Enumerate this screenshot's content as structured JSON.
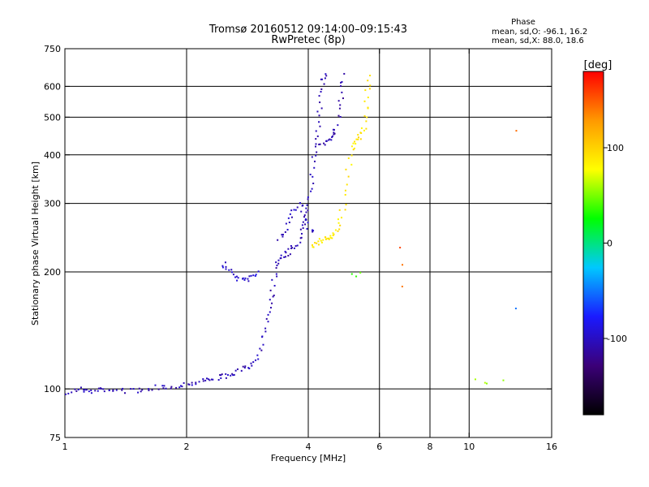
{
  "chart_data": {
    "type": "scatter",
    "title": "Tromsø 20160512 09:14:00–09:15:43",
    "subtitle": "RwPretec (8p)",
    "xlabel": "Frequency [MHz]",
    "ylabel": "Stationary phase Virtual Height [km]",
    "x_scale": "log",
    "y_scale": "log",
    "xlim": [
      1,
      16
    ],
    "ylim": [
      75,
      750
    ],
    "x_ticks": [
      1,
      2,
      4,
      6,
      8,
      10,
      16
    ],
    "y_ticks": [
      75,
      100,
      200,
      300,
      400,
      500,
      600,
      750
    ],
    "x_grid": [
      2,
      4,
      6,
      8,
      10
    ],
    "y_grid": [
      100,
      200,
      300,
      400,
      500,
      600
    ],
    "grid": true,
    "colorbar": {
      "unit_label": "[deg]",
      "ticks": [
        100,
        0,
        -100
      ],
      "range": [
        -180,
        180
      ],
      "colors": [
        "#000000",
        "#3b0078",
        "#1a1aff",
        "#00c8ff",
        "#00ff00",
        "#ffff00",
        "#ff9900",
        "#ff0000"
      ]
    },
    "stats": {
      "header": "Phase",
      "o_line": "mean, sd,O: -96.1, 16.2",
      "x_line": "mean, sd,X: 88.0, 18.6"
    },
    "traces": [
      {
        "phase": -105,
        "points": [
          [
            1.0,
            97
          ],
          [
            1.05,
            99
          ],
          [
            1.1,
            100
          ],
          [
            1.15,
            98
          ],
          [
            1.2,
            99
          ],
          [
            1.25,
            100
          ],
          [
            1.3,
            99
          ],
          [
            1.4,
            99
          ],
          [
            1.5,
            99
          ],
          [
            1.6,
            100
          ],
          [
            1.7,
            101
          ],
          [
            1.8,
            101
          ],
          [
            1.9,
            102
          ],
          [
            2.0,
            103
          ],
          [
            2.1,
            104
          ],
          [
            2.2,
            105
          ],
          [
            2.3,
            106
          ],
          [
            2.4,
            107
          ],
          [
            2.5,
            108
          ],
          [
            2.6,
            109
          ],
          [
            2.7,
            111
          ],
          [
            2.8,
            113
          ],
          [
            2.9,
            116
          ],
          [
            3.0,
            122
          ],
          [
            3.1,
            135
          ],
          [
            3.15,
            148
          ],
          [
            3.2,
            160
          ],
          [
            3.25,
            175
          ],
          [
            3.3,
            195
          ],
          [
            3.35,
            210
          ],
          [
            3.4,
            218
          ],
          [
            3.5,
            222
          ],
          [
            3.6,
            226
          ],
          [
            3.7,
            232
          ],
          [
            3.8,
            242
          ],
          [
            3.9,
            258
          ],
          [
            3.95,
            275
          ],
          [
            4.0,
            300
          ],
          [
            4.05,
            330
          ],
          [
            4.1,
            370
          ],
          [
            4.15,
            410
          ],
          [
            4.2,
            450
          ],
          [
            4.25,
            500
          ],
          [
            4.3,
            560
          ],
          [
            4.35,
            620
          ],
          [
            4.4,
            650
          ]
        ]
      },
      {
        "phase": -95,
        "points": [
          [
            2.45,
            210
          ],
          [
            2.5,
            205
          ],
          [
            2.6,
            198
          ],
          [
            2.7,
            192
          ],
          [
            2.8,
            190
          ],
          [
            2.9,
            195
          ],
          [
            3.0,
            200
          ]
        ]
      },
      {
        "phase": -100,
        "points": [
          [
            3.4,
            240
          ],
          [
            3.5,
            255
          ],
          [
            3.6,
            275
          ],
          [
            3.7,
            290
          ],
          [
            3.8,
            300
          ],
          [
            3.9,
            285
          ],
          [
            4.0,
            265
          ],
          [
            4.1,
            250
          ]
        ]
      },
      {
        "phase": -110,
        "points": [
          [
            4.3,
            420
          ],
          [
            4.4,
            430
          ],
          [
            4.5,
            440
          ],
          [
            4.6,
            450
          ],
          [
            4.7,
            470
          ],
          [
            4.8,
            520
          ],
          [
            4.85,
            580
          ],
          [
            4.9,
            640
          ]
        ]
      },
      {
        "phase": 90,
        "points": [
          [
            4.1,
            230
          ],
          [
            4.2,
            235
          ],
          [
            4.3,
            240
          ],
          [
            4.4,
            245
          ],
          [
            4.5,
            245
          ],
          [
            4.6,
            248
          ],
          [
            4.7,
            255
          ],
          [
            4.8,
            270
          ],
          [
            4.9,
            300
          ],
          [
            5.0,
            350
          ],
          [
            5.1,
            400
          ],
          [
            5.2,
            430
          ],
          [
            5.3,
            440
          ],
          [
            5.4,
            450
          ],
          [
            5.5,
            470
          ],
          [
            5.55,
            520
          ],
          [
            5.6,
            580
          ],
          [
            5.65,
            640
          ]
        ]
      },
      {
        "phase": 40,
        "points": [
          [
            5.1,
            198
          ],
          [
            5.2,
            196
          ],
          [
            5.4,
            197
          ]
        ]
      },
      {
        "phase": 150,
        "points": [
          [
            6.8,
            230
          ],
          [
            6.8,
            210
          ],
          [
            6.8,
            185
          ],
          [
            13.0,
            460
          ]
        ]
      },
      {
        "phase": 60,
        "points": [
          [
            10.5,
            105
          ],
          [
            10.8,
            104
          ],
          [
            11.2,
            103
          ],
          [
            12.0,
            104
          ]
        ]
      },
      {
        "phase": -60,
        "points": [
          [
            13.0,
            160
          ]
        ]
      }
    ]
  }
}
